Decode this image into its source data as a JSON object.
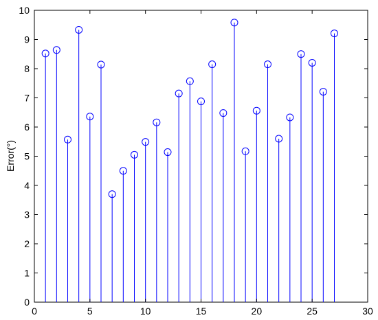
{
  "chart_data": {
    "type": "scatter",
    "style": "stem",
    "title": "",
    "xlabel": "",
    "ylabel": "Error(°)",
    "xlim": [
      0,
      30
    ],
    "ylim": [
      0,
      10
    ],
    "xticks": [
      0,
      5,
      10,
      15,
      20,
      25,
      30
    ],
    "yticks": [
      0,
      1,
      2,
      3,
      4,
      5,
      6,
      7,
      8,
      9,
      10
    ],
    "grid": false,
    "legend": "none",
    "marker": "open-circle",
    "color": "#0000ff",
    "series": [
      {
        "x": [
          1,
          2,
          3,
          4,
          5,
          6,
          7,
          8,
          9,
          10,
          11,
          12,
          13,
          14,
          15,
          16,
          17,
          18,
          19,
          20,
          21,
          22,
          23,
          24,
          25,
          26,
          27
        ],
        "values": [
          8.52,
          8.64,
          5.57,
          9.33,
          6.36,
          8.14,
          3.7,
          4.5,
          5.05,
          5.49,
          6.16,
          5.14,
          7.15,
          7.57,
          6.88,
          8.15,
          6.48,
          9.58,
          5.17,
          6.56,
          8.15,
          5.6,
          6.33,
          8.5,
          8.2,
          7.21,
          9.21
        ]
      }
    ]
  }
}
